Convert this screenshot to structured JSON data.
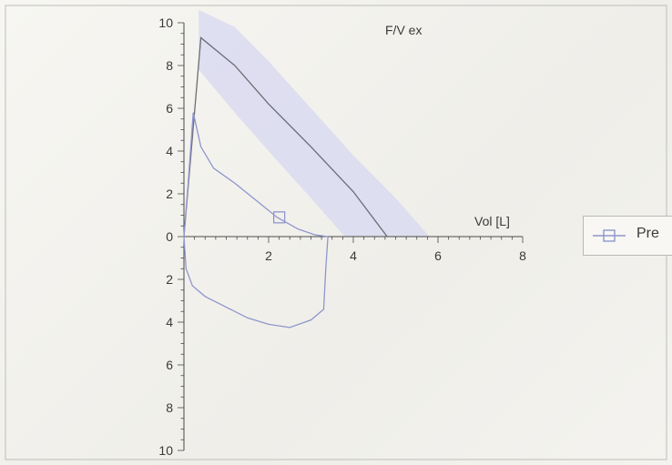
{
  "chart_data": {
    "type": "line",
    "title": "F/V ex",
    "xlabel": "Vol [L]",
    "ylabel": "",
    "xlim": [
      0,
      8
    ],
    "ylim": [
      -10,
      10
    ],
    "x_ticks": [
      2,
      4,
      6,
      8
    ],
    "y_ticks": [
      10,
      8,
      6,
      4,
      2,
      0,
      -2,
      -4,
      -6,
      -8,
      -10
    ],
    "y_tick_labels": [
      "10",
      "8",
      "6",
      "4",
      "2",
      "0",
      "2",
      "4",
      "6",
      "8",
      "10"
    ],
    "grid": false,
    "legend_placement": "right",
    "colors": {
      "pre": "#8f96cc",
      "predicted": "#6c6c74",
      "normal_band": "#d9dbf0",
      "axis": "#4a4a4a"
    },
    "series": [
      {
        "name": "Pre",
        "marker": "square",
        "marker_point": [
          2.25,
          0.9
        ],
        "expiratory": [
          [
            0,
            0
          ],
          [
            0.1,
            2.5
          ],
          [
            0.22,
            5.8
          ],
          [
            0.4,
            4.2
          ],
          [
            0.7,
            3.2
          ],
          [
            1.2,
            2.5
          ],
          [
            1.7,
            1.7
          ],
          [
            2.2,
            0.9
          ],
          [
            2.7,
            0.35
          ],
          [
            3.1,
            0.08
          ],
          [
            3.4,
            0
          ]
        ],
        "inspiratory": [
          [
            0,
            0
          ],
          [
            0.05,
            -1.5
          ],
          [
            0.2,
            -2.3
          ],
          [
            0.5,
            -2.8
          ],
          [
            1.0,
            -3.3
          ],
          [
            1.5,
            -3.8
          ],
          [
            2.0,
            -4.1
          ],
          [
            2.5,
            -4.25
          ],
          [
            3.0,
            -3.9
          ],
          [
            3.3,
            -3.4
          ],
          [
            3.35,
            -1.5
          ],
          [
            3.4,
            0
          ]
        ]
      }
    ],
    "predicted_line": [
      [
        0,
        0
      ],
      [
        0.4,
        9.3
      ],
      [
        1.2,
        8.0
      ],
      [
        2.0,
        6.2
      ],
      [
        3.0,
        4.2
      ],
      [
        4.0,
        2.1
      ],
      [
        4.8,
        0
      ]
    ],
    "normal_band_upper": [
      [
        0.35,
        10.6
      ],
      [
        1.2,
        9.8
      ],
      [
        2.0,
        8.2
      ],
      [
        3.0,
        6.0
      ],
      [
        4.0,
        3.8
      ],
      [
        5.0,
        1.8
      ],
      [
        5.8,
        0
      ]
    ],
    "normal_band_lower": [
      [
        0.35,
        7.8
      ],
      [
        1.2,
        5.8
      ],
      [
        2.0,
        4.0
      ],
      [
        3.0,
        1.8
      ],
      [
        3.8,
        0
      ]
    ]
  },
  "legend": {
    "label": "Pre"
  }
}
